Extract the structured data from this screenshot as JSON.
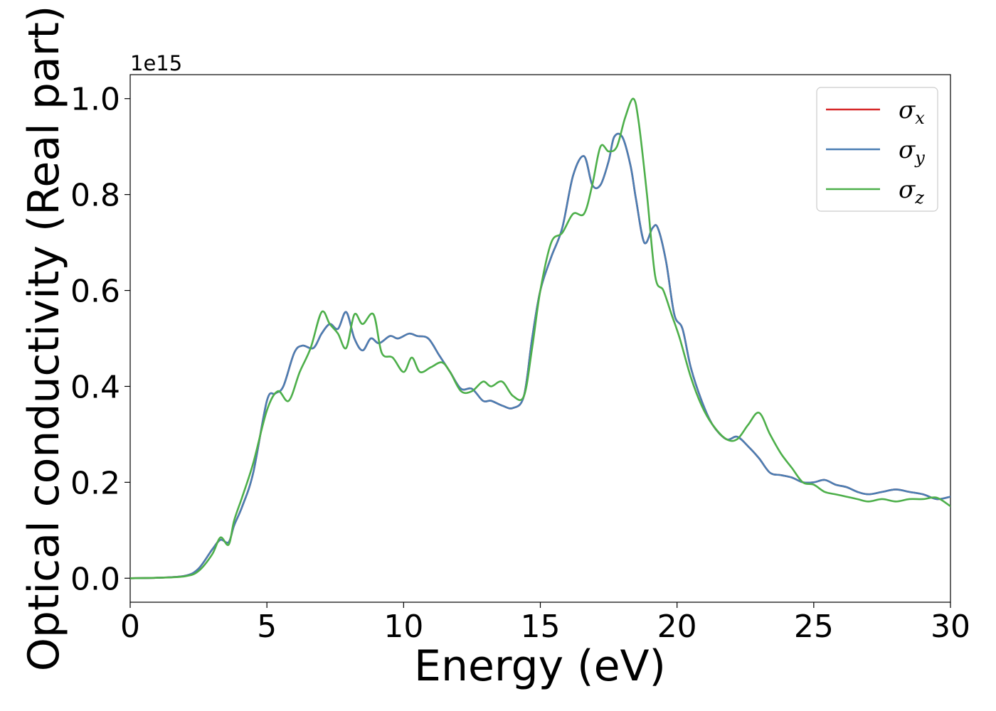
{
  "chart_data": {
    "type": "line",
    "title": "",
    "xlabel": "Energy (eV)",
    "ylabel": "Optical conductivity (Real part)",
    "y_offset_label": "1e15",
    "xlim": [
      0,
      30
    ],
    "ylim": [
      -0.05,
      1.05
    ],
    "x_ticks": [
      0,
      5,
      10,
      15,
      20,
      25,
      30
    ],
    "x_tick_labels": [
      "0",
      "5",
      "10",
      "15",
      "20",
      "25",
      "30"
    ],
    "y_ticks": [
      0.0,
      0.2,
      0.4,
      0.6,
      0.8,
      1.0
    ],
    "y_tick_labels": [
      "0.0",
      "0.2",
      "0.4",
      "0.6",
      "0.8",
      "1.0"
    ],
    "grid": false,
    "legend_position": "top-right",
    "series": [
      {
        "name": "σx",
        "legend_base": "σ",
        "legend_sub": "x",
        "color": "#d62728",
        "x": [
          0,
          1,
          2,
          2.5,
          3,
          3.3,
          3.6,
          3.8,
          4.1,
          4.5,
          5.0,
          5.3,
          5.6,
          6.0,
          6.3,
          6.7,
          7.0,
          7.3,
          7.6,
          7.9,
          8.2,
          8.5,
          8.8,
          9.1,
          9.5,
          9.8,
          10.2,
          10.5,
          10.9,
          11.3,
          11.7,
          12.1,
          12.5,
          12.9,
          13.2,
          13.6,
          14.0,
          14.4,
          14.7,
          15.0,
          15.4,
          15.8,
          16.2,
          16.6,
          16.9,
          17.2,
          17.5,
          17.7,
          18.0,
          18.3,
          18.5,
          18.8,
          19.1,
          19.3,
          19.6,
          19.9,
          20.2,
          20.5,
          20.9,
          21.3,
          21.8,
          22.2,
          22.6,
          23.0,
          23.4,
          23.8,
          24.2,
          24.6,
          25.0,
          25.4,
          25.8,
          26.2,
          26.6,
          27.0,
          27.5,
          28.0,
          28.5,
          29.0,
          29.5,
          30.0
        ],
        "y": [
          0.0,
          0.001,
          0.005,
          0.02,
          0.06,
          0.08,
          0.075,
          0.11,
          0.15,
          0.22,
          0.37,
          0.385,
          0.4,
          0.47,
          0.485,
          0.48,
          0.51,
          0.53,
          0.52,
          0.555,
          0.5,
          0.475,
          0.5,
          0.49,
          0.505,
          0.5,
          0.51,
          0.505,
          0.5,
          0.465,
          0.43,
          0.395,
          0.395,
          0.37,
          0.37,
          0.36,
          0.355,
          0.38,
          0.5,
          0.6,
          0.67,
          0.73,
          0.84,
          0.88,
          0.82,
          0.82,
          0.87,
          0.92,
          0.92,
          0.86,
          0.79,
          0.7,
          0.73,
          0.73,
          0.66,
          0.55,
          0.52,
          0.44,
          0.37,
          0.32,
          0.29,
          0.295,
          0.275,
          0.25,
          0.22,
          0.215,
          0.21,
          0.2,
          0.2,
          0.205,
          0.195,
          0.19,
          0.18,
          0.175,
          0.18,
          0.185,
          0.18,
          0.175,
          0.165,
          0.17
        ]
      },
      {
        "name": "σy",
        "legend_base": "σ",
        "legend_sub": "y",
        "color": "#4a7eb3",
        "x": [
          0,
          1,
          2,
          2.5,
          3,
          3.3,
          3.6,
          3.8,
          4.1,
          4.5,
          5.0,
          5.3,
          5.6,
          6.0,
          6.3,
          6.7,
          7.0,
          7.3,
          7.6,
          7.9,
          8.2,
          8.5,
          8.8,
          9.1,
          9.5,
          9.8,
          10.2,
          10.5,
          10.9,
          11.3,
          11.7,
          12.1,
          12.5,
          12.9,
          13.2,
          13.6,
          14.0,
          14.4,
          14.7,
          15.0,
          15.4,
          15.8,
          16.2,
          16.6,
          16.9,
          17.2,
          17.5,
          17.7,
          18.0,
          18.3,
          18.5,
          18.8,
          19.1,
          19.3,
          19.6,
          19.9,
          20.2,
          20.5,
          20.9,
          21.3,
          21.8,
          22.2,
          22.6,
          23.0,
          23.4,
          23.8,
          24.2,
          24.6,
          25.0,
          25.4,
          25.8,
          26.2,
          26.6,
          27.0,
          27.5,
          28.0,
          28.5,
          29.0,
          29.5,
          30.0
        ],
        "y": [
          0.0,
          0.001,
          0.005,
          0.02,
          0.06,
          0.08,
          0.075,
          0.11,
          0.15,
          0.22,
          0.37,
          0.385,
          0.4,
          0.47,
          0.485,
          0.48,
          0.51,
          0.53,
          0.52,
          0.555,
          0.5,
          0.475,
          0.5,
          0.49,
          0.505,
          0.5,
          0.51,
          0.505,
          0.5,
          0.465,
          0.43,
          0.395,
          0.395,
          0.37,
          0.37,
          0.36,
          0.355,
          0.38,
          0.5,
          0.6,
          0.67,
          0.73,
          0.84,
          0.88,
          0.82,
          0.82,
          0.87,
          0.92,
          0.92,
          0.86,
          0.79,
          0.7,
          0.73,
          0.73,
          0.66,
          0.55,
          0.52,
          0.44,
          0.37,
          0.32,
          0.29,
          0.295,
          0.275,
          0.25,
          0.22,
          0.215,
          0.21,
          0.2,
          0.2,
          0.205,
          0.195,
          0.19,
          0.18,
          0.175,
          0.18,
          0.185,
          0.18,
          0.175,
          0.165,
          0.17
        ]
      },
      {
        "name": "σz",
        "legend_base": "σ",
        "legend_sub": "z",
        "color": "#4daf4a",
        "x": [
          0,
          1,
          2,
          2.5,
          3,
          3.3,
          3.6,
          3.8,
          4.1,
          4.5,
          5.0,
          5.4,
          5.8,
          6.2,
          6.6,
          7.0,
          7.3,
          7.6,
          7.9,
          8.2,
          8.5,
          8.9,
          9.2,
          9.6,
          10.0,
          10.3,
          10.6,
          11.0,
          11.4,
          11.7,
          12.1,
          12.5,
          12.9,
          13.2,
          13.6,
          14.0,
          14.4,
          14.7,
          15.0,
          15.4,
          15.8,
          16.2,
          16.6,
          16.9,
          17.2,
          17.5,
          17.8,
          18.1,
          18.4,
          18.6,
          18.9,
          19.2,
          19.5,
          19.8,
          20.1,
          20.5,
          20.9,
          21.3,
          21.8,
          22.2,
          22.6,
          23.0,
          23.4,
          23.8,
          24.2,
          24.6,
          25.0,
          25.4,
          25.8,
          26.2,
          26.6,
          27.0,
          27.5,
          28.0,
          28.5,
          29.0,
          29.5,
          30.0
        ],
        "y": [
          0.0,
          0.001,
          0.004,
          0.015,
          0.05,
          0.085,
          0.07,
          0.12,
          0.17,
          0.24,
          0.35,
          0.39,
          0.37,
          0.43,
          0.48,
          0.555,
          0.53,
          0.51,
          0.48,
          0.55,
          0.53,
          0.55,
          0.47,
          0.46,
          0.43,
          0.46,
          0.43,
          0.44,
          0.45,
          0.43,
          0.39,
          0.39,
          0.41,
          0.4,
          0.41,
          0.38,
          0.38,
          0.48,
          0.6,
          0.7,
          0.72,
          0.76,
          0.76,
          0.82,
          0.9,
          0.89,
          0.9,
          0.96,
          1.0,
          0.95,
          0.8,
          0.63,
          0.6,
          0.55,
          0.5,
          0.42,
          0.36,
          0.32,
          0.29,
          0.29,
          0.32,
          0.345,
          0.3,
          0.26,
          0.23,
          0.2,
          0.195,
          0.18,
          0.175,
          0.17,
          0.165,
          0.16,
          0.165,
          0.16,
          0.165,
          0.165,
          0.168,
          0.15
        ]
      }
    ]
  }
}
